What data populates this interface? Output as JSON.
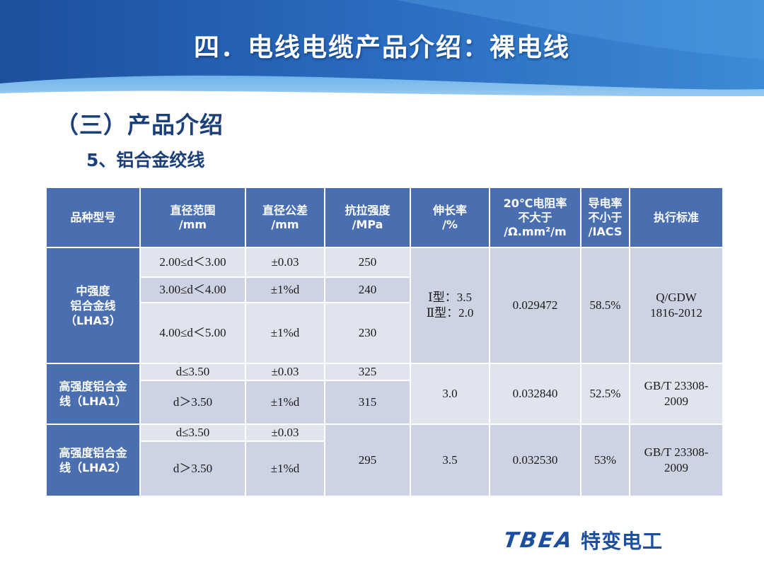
{
  "slide": {
    "title": "四．电线电缆产品介绍：裸电线",
    "heading": "（三）产品介绍",
    "subheading": "5、铝合金绞线"
  },
  "colors": {
    "banner": "#1f5fb0",
    "header_cell": "#4a6fb0",
    "cell_light": "#dfe4ee",
    "cell_dark": "#cdd3e3",
    "heading_text": "#1a3f7a"
  },
  "table": {
    "headers": [
      "品种型号",
      "直径范围\n/mm",
      "直径公差\n/mm",
      "抗拉强度\n/MPa",
      "伸长率\n/%",
      "20℃电阻率\n不大于\n/Ω.mm²/m",
      "导电率\n不小于\n/IACS",
      "执行标准"
    ],
    "groups": [
      {
        "type": "中强度\n铝合金线\n（LHA3）",
        "rows": [
          {
            "diameter": "2.00≤d＜3.00",
            "tolerance": "±0.03",
            "strength": "250"
          },
          {
            "diameter": "3.00≤d＜4.00",
            "tolerance": "±1%d",
            "strength": "240"
          },
          {
            "diameter": "4.00≤d＜5.00",
            "tolerance": "±1%d",
            "strength": "230"
          }
        ],
        "elongation": "Ⅰ型：3.5\nⅡ型：2.0",
        "resistivity": "0.029472",
        "conductivity": "58.5%",
        "standard": "Q/GDW\n1816-2012"
      },
      {
        "type": "高强度铝合金\n线（LHA1）",
        "rows": [
          {
            "diameter": "d≤3.50",
            "tolerance": "±0.03",
            "strength": "325"
          },
          {
            "diameter": "d＞3.50",
            "tolerance": "±1%d",
            "strength": "315"
          }
        ],
        "elongation": "3.0",
        "resistivity": "0.032840",
        "conductivity": "52.5%",
        "standard": "GB/T 23308-\n2009"
      },
      {
        "type": "高强度铝合金\n线（LHA2）",
        "rows": [
          {
            "diameter": "d≤3.50",
            "tolerance": "±0.03"
          },
          {
            "diameter": "d＞3.50",
            "tolerance": "±1%d"
          }
        ],
        "strength": "295",
        "elongation": "3.5",
        "resistivity": "0.032530",
        "conductivity": "53%",
        "standard": "GB/T 23308-\n2009"
      }
    ]
  },
  "footer": {
    "logo_en": "TBEA",
    "logo_cn": "特变电工"
  }
}
